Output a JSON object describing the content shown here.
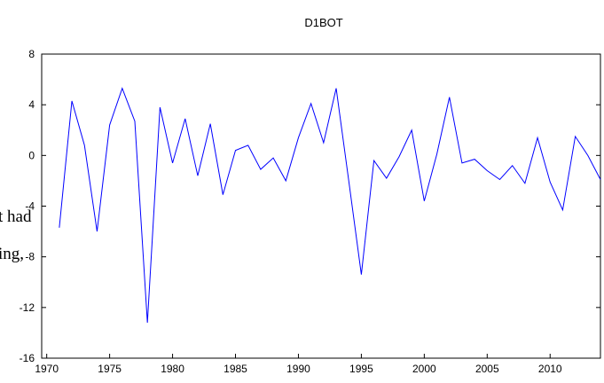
{
  "chart_data": {
    "type": "line",
    "title": "D1BOT",
    "x": [
      1971,
      1972,
      1973,
      1974,
      1975,
      1976,
      1977,
      1978,
      1979,
      1980,
      1981,
      1982,
      1983,
      1984,
      1985,
      1986,
      1987,
      1988,
      1989,
      1990,
      1991,
      1992,
      1993,
      1994,
      1995,
      1996,
      1997,
      1998,
      1999,
      2000,
      2001,
      2002,
      2003,
      2004,
      2005,
      2006,
      2007,
      2008,
      2009,
      2010,
      2011,
      2012,
      2013,
      2014
    ],
    "series": [
      {
        "color": "#0000ff",
        "values": [
          -5.7,
          4.3,
          0.8,
          -6.0,
          2.4,
          5.3,
          2.7,
          -13.2,
          3.8,
          -0.6,
          2.9,
          -1.6,
          2.5,
          -3.1,
          0.4,
          0.8,
          -1.1,
          -0.2,
          -2.0,
          1.4,
          4.1,
          1.0,
          5.3,
          -2.0,
          -9.4,
          -0.4,
          -1.8,
          -0.1,
          2.0,
          -3.6,
          0.1,
          4.6,
          -0.6,
          -0.3,
          -1.2,
          -1.9,
          -0.8,
          -2.2,
          1.4,
          -2.1,
          -4.3,
          1.5,
          0.0,
          -1.9
        ]
      }
    ],
    "xlim": [
      1969.6,
      2014
    ],
    "xticks": [
      1970,
      1975,
      1980,
      1985,
      1990,
      1995,
      2000,
      2005,
      2010
    ],
    "ylim": [
      -16,
      8
    ],
    "yticks": [
      -16,
      -12,
      -8,
      -4,
      0,
      4,
      8
    ],
    "grid": false
  },
  "background_text": [
    "t had",
    "ing,"
  ]
}
